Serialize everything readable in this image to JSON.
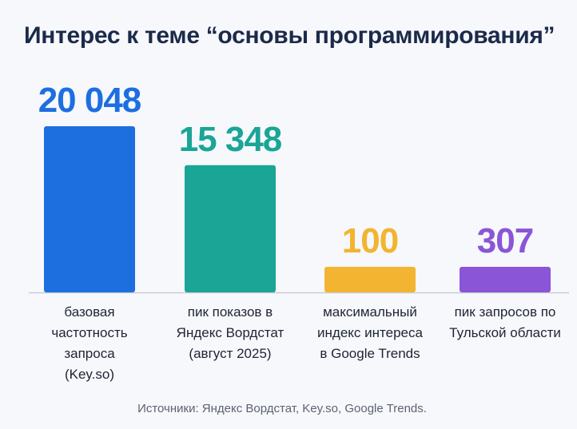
{
  "chart_data": {
    "type": "bar",
    "title": "Интерес к теме “основы программирования”",
    "categories": [
      "базовая частотность запроса (Key.so)",
      "пик показов в Яндекс Вордстат (август 2025)",
      "максимальный индекс интереса в Google Trends",
      "пик запросов по Тульской области"
    ],
    "category_lines": [
      [
        "базовая",
        "частотность",
        "запроса",
        "(Key.so)"
      ],
      [
        "пик показов в",
        "Яндекс Вордстат",
        "(август 2025)"
      ],
      [
        "максимальный",
        "индекс интереса",
        "в Google Trends"
      ],
      [
        "пик запросов по",
        "Тульской области"
      ]
    ],
    "values": [
      20048,
      15348,
      100,
      307
    ],
    "value_labels": [
      "20 048",
      "15 348",
      "100",
      "307"
    ],
    "colors": [
      "#1d6fe0",
      "#1aa596",
      "#f2b431",
      "#8a55d6"
    ],
    "xlabel": "",
    "ylabel": "",
    "grid": false,
    "legend": "none"
  },
  "source_text": "Источники: Яндекс Вордстат, Key.so, Google Trends."
}
